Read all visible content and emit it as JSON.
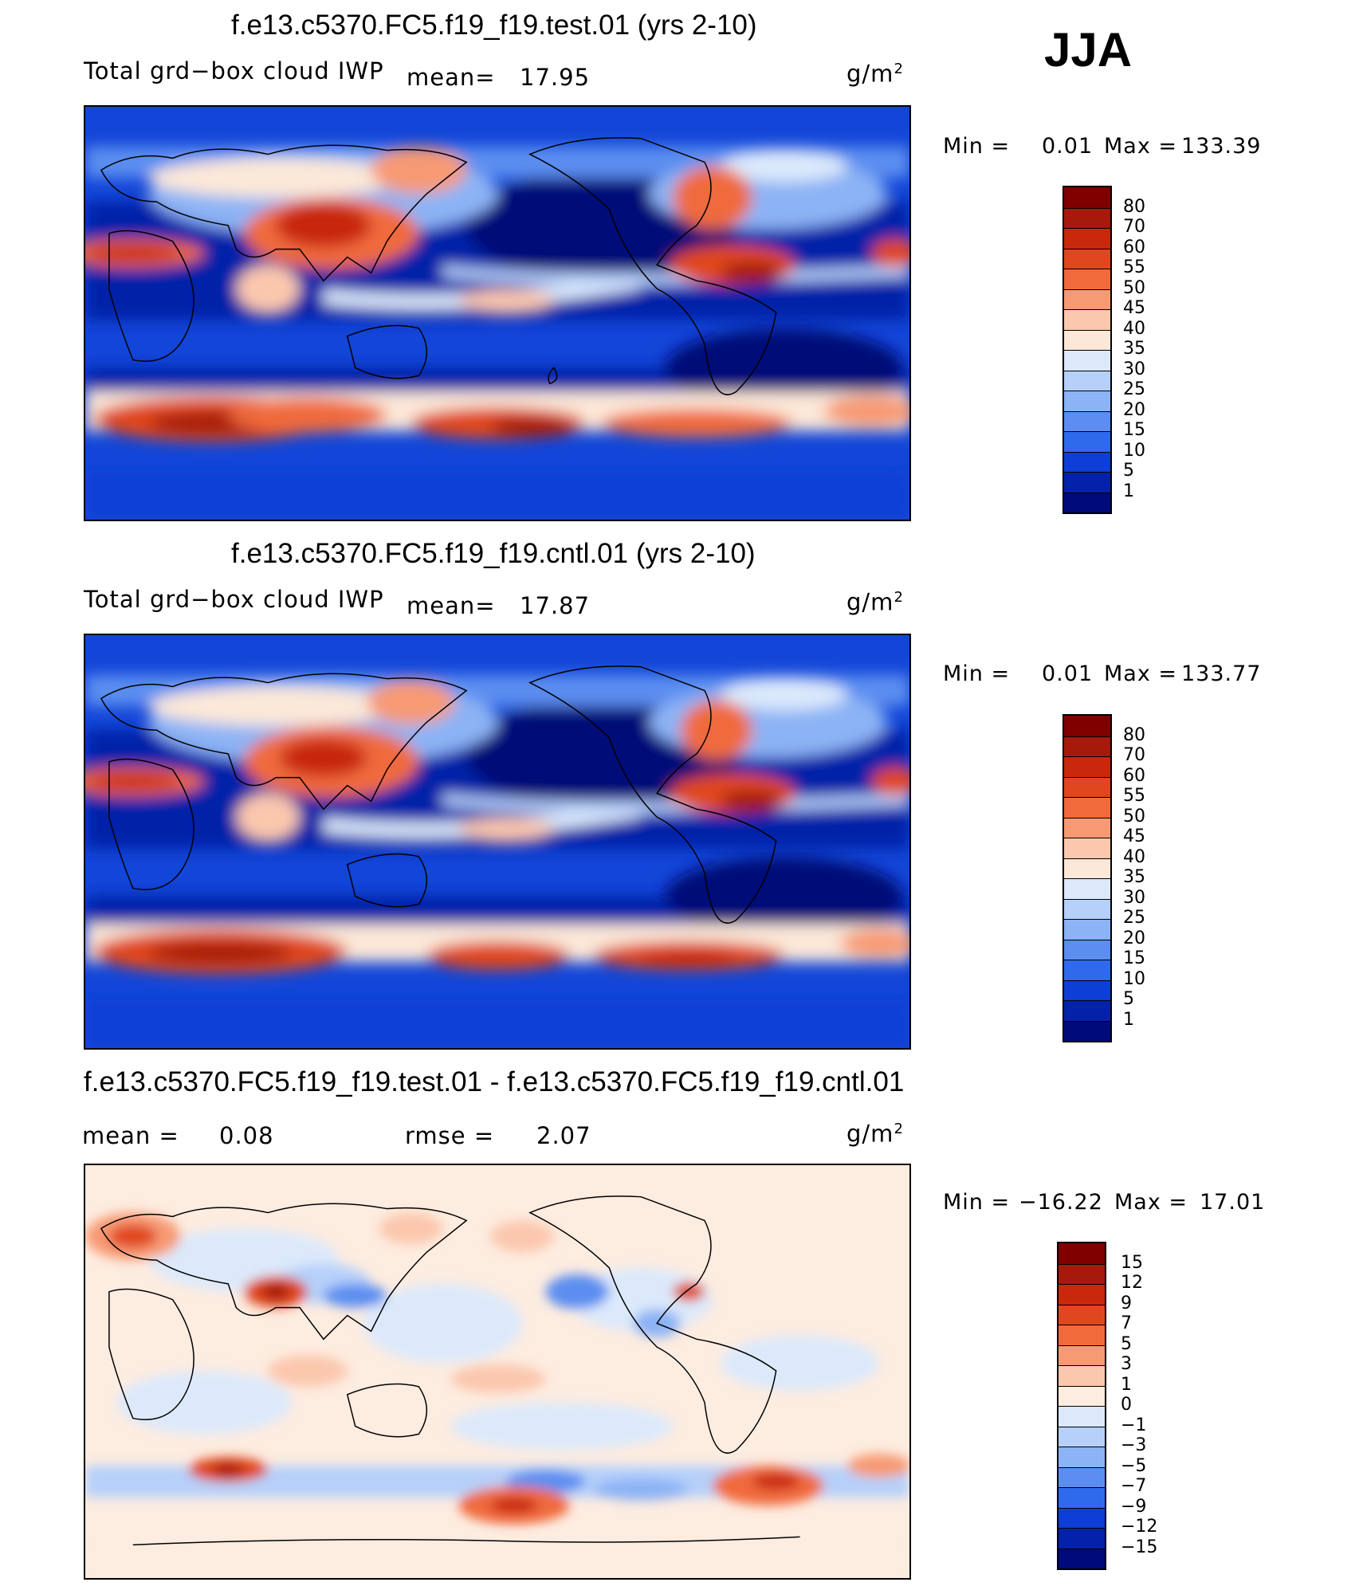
{
  "season": "JJA",
  "panels": [
    {
      "title": "f.e13.c5370.FC5.f19_f19.test.01 (yrs 2-10)",
      "varname": "Total grd−box cloud IWP",
      "mean_label": "mean=",
      "mean_value": "17.95",
      "units": "g/m",
      "units_sup": "2",
      "min_label": "Min =",
      "min_value": "0.01",
      "max_label": "Max =",
      "max_value": "133.39",
      "colorbar": [
        "80",
        "70",
        "60",
        "55",
        "50",
        "45",
        "40",
        "35",
        "30",
        "25",
        "20",
        "15",
        "10",
        "5",
        "1"
      ]
    },
    {
      "title": "f.e13.c5370.FC5.f19_f19.cntl.01 (yrs 2-10)",
      "varname": "Total grd−box cloud IWP",
      "mean_label": "mean=",
      "mean_value": "17.87",
      "units": "g/m",
      "units_sup": "2",
      "min_label": "Min =",
      "min_value": "0.01",
      "max_label": "Max =",
      "max_value": "133.77",
      "colorbar": [
        "80",
        "70",
        "60",
        "55",
        "50",
        "45",
        "40",
        "35",
        "30",
        "25",
        "20",
        "15",
        "10",
        "5",
        "1"
      ]
    },
    {
      "title": "f.e13.c5370.FC5.f19_f19.test.01 - f.e13.c5370.FC5.f19_f19.cntl.01",
      "mean_label": "mean =",
      "mean_value": "0.08",
      "rmse_label": "rmse =",
      "rmse_value": "2.07",
      "units": "g/m",
      "units_sup": "2",
      "min_label": "Min =",
      "min_value": "−16.22",
      "max_label": "Max =",
      "max_value": "17.01",
      "colorbar": [
        "15",
        "12",
        "9",
        "7",
        "5",
        "3",
        "1",
        "0",
        "−1",
        "−3",
        "−5",
        "−7",
        "−9",
        "−12",
        "−15"
      ]
    }
  ],
  "colors": {
    "abs_scale": [
      "#800000",
      "#a51a0a",
      "#c8280c",
      "#e0461f",
      "#f06a3c",
      "#f79a73",
      "#fbc7ad",
      "#fce8d8",
      "#dce9fb",
      "#b6d0fa",
      "#8cb3f5",
      "#5b8ef0",
      "#2f6aec",
      "#0d3fd6",
      "#0422a8",
      "#000a78"
    ],
    "diff_scale": [
      "#800000",
      "#a51a0a",
      "#c8280c",
      "#e0461f",
      "#f06a3c",
      "#f79a73",
      "#fbc7ad",
      "#fdece0",
      "#dce9fb",
      "#b6d0fa",
      "#8cb3f5",
      "#5b8ef0",
      "#2f6aec",
      "#0d3fd6",
      "#0422a8",
      "#000a78"
    ]
  }
}
